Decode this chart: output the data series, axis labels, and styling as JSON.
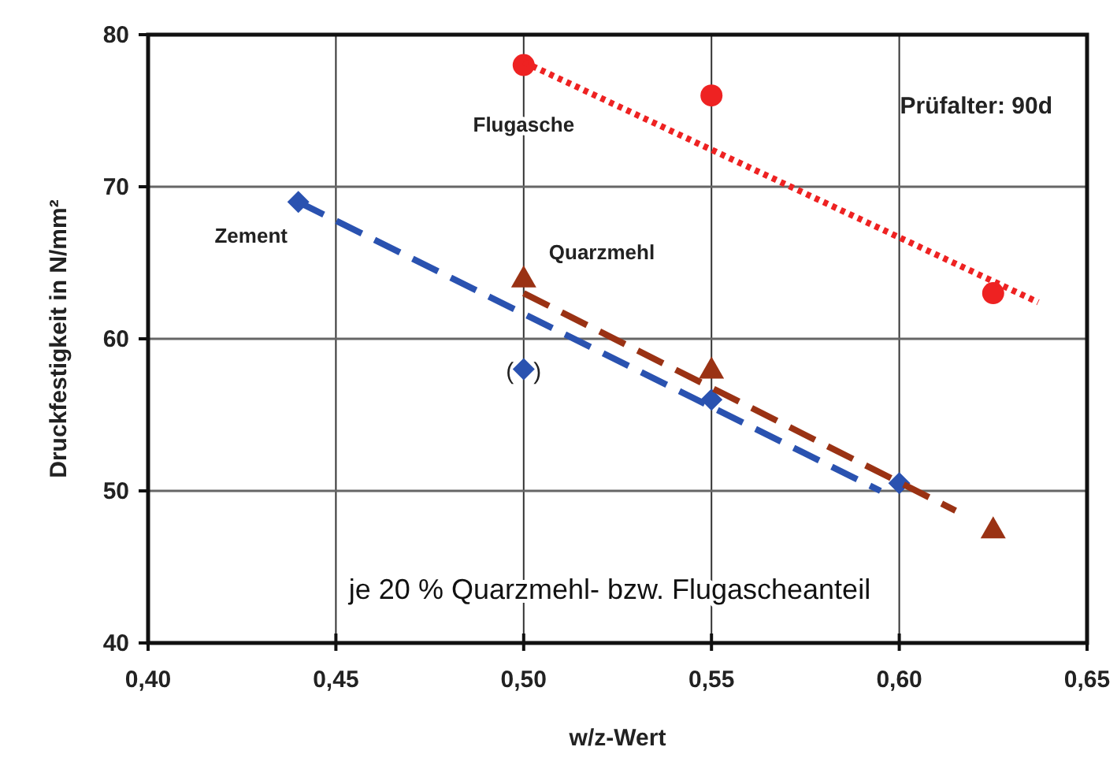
{
  "chart_data": {
    "type": "scatter",
    "xlabel": "w/z-Wert",
    "ylabel": "Druckfestigkeit in N/mm²",
    "xlim": [
      0.4,
      0.65
    ],
    "ylim": [
      40,
      80
    ],
    "xticks": [
      {
        "value": 0.4,
        "label": "0,40"
      },
      {
        "value": 0.45,
        "label": "0,45"
      },
      {
        "value": 0.5,
        "label": "0,50"
      },
      {
        "value": 0.55,
        "label": "0,55"
      },
      {
        "value": 0.6,
        "label": "0,60"
      },
      {
        "value": 0.65,
        "label": "0,65"
      }
    ],
    "yticks": [
      40,
      50,
      60,
      70,
      80
    ],
    "grid": true,
    "series": [
      {
        "name": "Zement",
        "color": "#2a52b0",
        "marker": "diamond",
        "x": [
          0.44,
          0.5,
          0.55,
          0.6
        ],
        "values": [
          69,
          58,
          56,
          50.5
        ]
      },
      {
        "name": "Quarzmehl",
        "color": "#9a3214",
        "marker": "triangle",
        "x": [
          0.5,
          0.55,
          0.625
        ],
        "values": [
          64,
          58,
          47.5
        ]
      },
      {
        "name": "Flugasche",
        "color": "#ee2222",
        "marker": "circle",
        "x": [
          0.5,
          0.55,
          0.625
        ],
        "values": [
          78,
          76,
          63
        ]
      },
      {
        "type": "line",
        "color": "#2a52b0",
        "marker": "none",
        "line_style": "dashed",
        "x": [
          0.44,
          0.595
        ],
        "values": [
          69,
          50
        ]
      },
      {
        "type": "line",
        "color": "#9a3214",
        "marker": "none",
        "line_style": "dashed",
        "x": [
          0.5,
          0.615
        ],
        "values": [
          63,
          48.7
        ]
      },
      {
        "type": "line",
        "color": "#ee2222",
        "marker": "none",
        "line_style": "dotted",
        "x": [
          0.5,
          0.637
        ],
        "values": [
          78.2,
          62.4
        ]
      }
    ],
    "annotations": [
      {
        "text": "(   )",
        "x": 0.5,
        "y": 58
      },
      "Prüfalter: 90d",
      "je 20 % Quarzmehl- bzw. Flugascheanteil"
    ]
  }
}
